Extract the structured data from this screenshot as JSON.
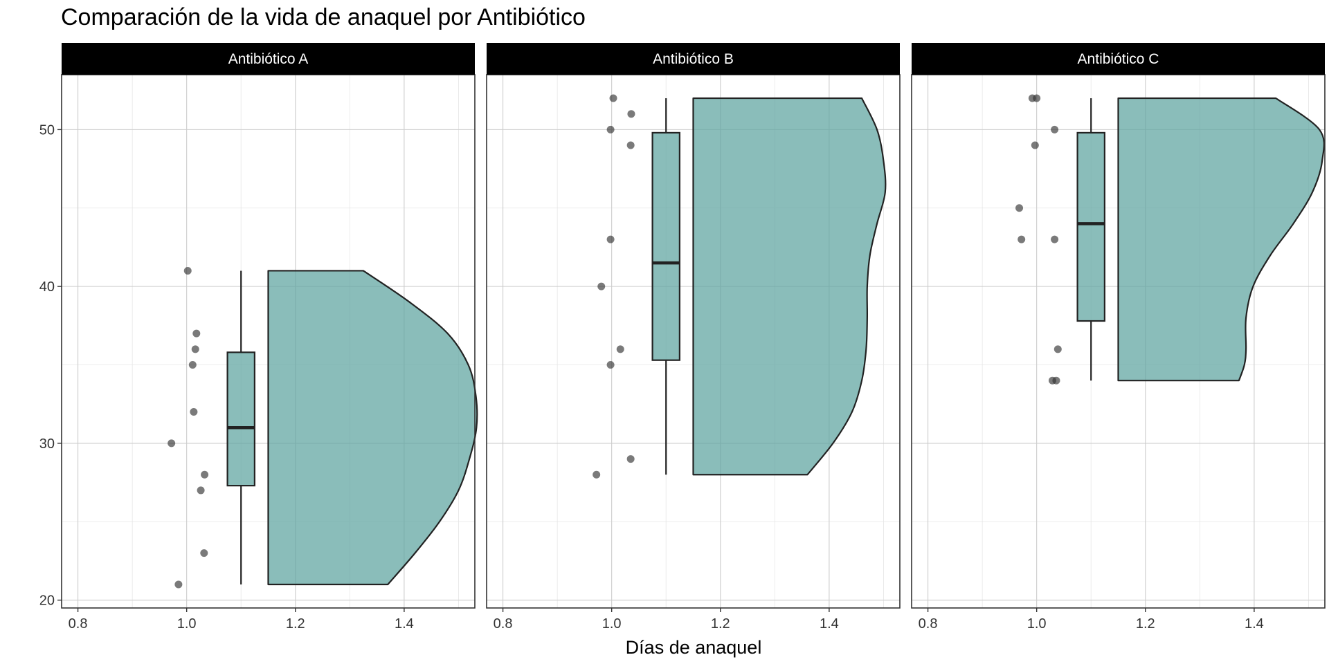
{
  "chart_data": {
    "type": "raincloud",
    "title": "Comparación de la vida de anaquel por Antibiótico",
    "xlabel": "Días de anaquel",
    "ylabel": "",
    "xlim": [
      0.77,
      1.53
    ],
    "ylim": [
      19.5,
      53.5
    ],
    "x_ticks": [
      "0.8",
      "1.0",
      "1.2",
      "1.4"
    ],
    "y_ticks": [
      "20",
      "30",
      "40",
      "50"
    ],
    "grid": true,
    "colors": {
      "fill": "#5FA5A0",
      "fill_opacity": 0.73,
      "outline": "#222222",
      "point": "#333333",
      "strip_bg": "#000000",
      "strip_text": "#ffffff",
      "grid_major": "#cccccc",
      "grid_minor": "#e6e6e6"
    },
    "panels": [
      {
        "name": "Antibiótico A",
        "points": [
          [
            1.002,
            41
          ],
          [
            1.018,
            37
          ],
          [
            1.016,
            36
          ],
          [
            1.011,
            35
          ],
          [
            1.013,
            32
          ],
          [
            0.972,
            30
          ],
          [
            1.033,
            28
          ],
          [
            1.026,
            27
          ],
          [
            1.032,
            23
          ],
          [
            0.985,
            21
          ]
        ],
        "box": {
          "q1": 27.3,
          "median": 31,
          "q3": 35.8,
          "min": 21,
          "max": 41
        },
        "violin": {
          "y": [
            21,
            23,
            25,
            27,
            29,
            31,
            33,
            35,
            37,
            39,
            41
          ],
          "width": [
            0.22,
            0.27,
            0.315,
            0.35,
            0.37,
            0.383,
            0.382,
            0.368,
            0.33,
            0.26,
            0.175
          ]
        }
      },
      {
        "name": "Antibiótico B",
        "points": [
          [
            1.003,
            52
          ],
          [
            1.036,
            51
          ],
          [
            0.998,
            50
          ],
          [
            1.035,
            49
          ],
          [
            0.998,
            43
          ],
          [
            0.981,
            40
          ],
          [
            1.016,
            36
          ],
          [
            0.998,
            35
          ],
          [
            1.035,
            29
          ],
          [
            0.972,
            28
          ]
        ],
        "box": {
          "q1": 35.3,
          "median": 41.5,
          "q3": 49.8,
          "min": 28,
          "max": 52
        },
        "violin": {
          "y": [
            28,
            30,
            32,
            34,
            36,
            38,
            40,
            42,
            44,
            46,
            48,
            50,
            52
          ],
          "width": [
            0.21,
            0.257,
            0.292,
            0.31,
            0.318,
            0.32,
            0.32,
            0.325,
            0.338,
            0.353,
            0.35,
            0.338,
            0.31
          ]
        }
      },
      {
        "name": "Antibiótico C",
        "points": [
          [
            0.992,
            52
          ],
          [
            1.0,
            52
          ],
          [
            1.033,
            50
          ],
          [
            0.997,
            49
          ],
          [
            0.968,
            45
          ],
          [
            0.972,
            43
          ],
          [
            1.033,
            43
          ],
          [
            1.039,
            36
          ],
          [
            1.029,
            34
          ],
          [
            1.036,
            34
          ]
        ],
        "box": {
          "q1": 37.8,
          "median": 44,
          "q3": 49.8,
          "min": 34,
          "max": 52
        },
        "violin": {
          "y": [
            34,
            35,
            36,
            38,
            40,
            42,
            44,
            46,
            48,
            50,
            52
          ],
          "width": [
            0.222,
            0.232,
            0.235,
            0.235,
            0.248,
            0.28,
            0.322,
            0.357,
            0.375,
            0.37,
            0.29
          ]
        }
      }
    ]
  }
}
